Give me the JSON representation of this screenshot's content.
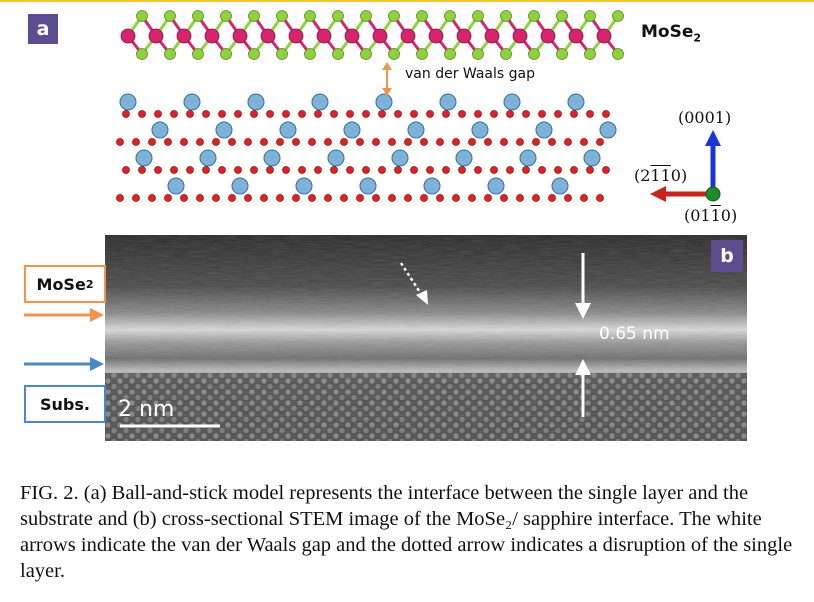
{
  "panel_a": {
    "badge": "a",
    "mose2_label": "MoSe",
    "mose2_sub": "2",
    "gap_label": "van der Waals gap",
    "axis_0001": "(0001)",
    "axis_2110": "(2̅̅110)",
    "axis_0110": "(01̅0)"
  },
  "panel_b": {
    "badge": "b",
    "mose2_box": "MoSe",
    "mose2_box_sub": "2",
    "subs_box": "Subs.",
    "gap_measure": "0.65 nm",
    "scalebar": "2 nm"
  },
  "caption": "FIG. 2. (a) Ball-and-stick model represents the interface between the single layer and the substrate and (b) cross-sectional STEM image of the MoSe₂/ sapphire interface. The white arrows indicate the van der Waals gap and the dotted arrow indicates a disruption of the single layer.",
  "colors": {
    "badge": "#5c4d8e",
    "mo_atom": "#d6246e",
    "se_atom": "#8fd13f",
    "al_atom": "#7fb2d8",
    "o_atom": "#d8232a",
    "axis_blue": "#1a36d6",
    "axis_red": "#c8231c",
    "axis_green": "#1f8a2a",
    "orange_arrow": "#f0954e",
    "blue_arrow": "#4f86c6"
  }
}
